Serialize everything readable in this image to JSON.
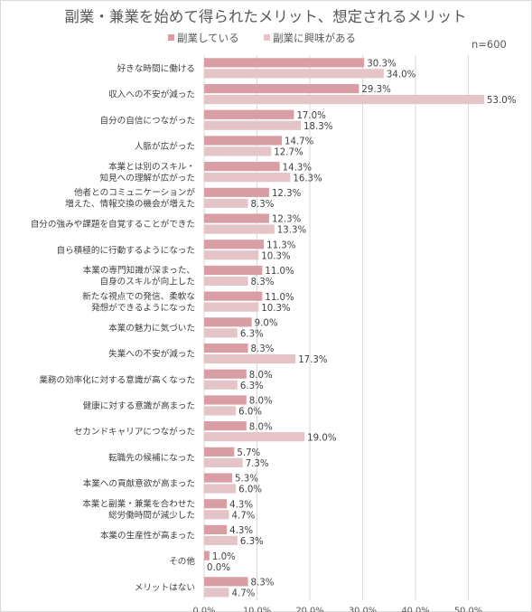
{
  "chart_data": {
    "type": "bar",
    "orientation": "horizontal",
    "title": "副業・兼業を始めて得られたメリット、想定されるメリット",
    "note": "n=600",
    "legend_position": "top",
    "grid": true,
    "xlim": [
      0,
      55
    ],
    "x_ticks": [
      "0.0%",
      "10.0%",
      "20.0%",
      "30.0%",
      "40.0%",
      "50.0%"
    ],
    "x_tick_values": [
      0,
      10,
      20,
      30,
      40,
      50
    ],
    "categories": [
      "好きな時間に働ける",
      "収入への不安が減った",
      "自分の自信につながった",
      "人脈が広がった",
      "本業とは別のスキル・\n知見への理解が広がった",
      "他者とのコミュニケーションが\n増えた、情報交換の機会が増えた",
      "自分の強みや課題を自覚することができた",
      "自ら積極的に行動するようになった",
      "本業の専門知識が深まった、\n自身のスキルが向上した",
      "新たな視点での発信、柔軟な\n発想ができるようになった",
      "本業の魅力に気づいた",
      "失業への不安が減った",
      "業務の効率化に対する意識が高くなった",
      "健康に対する意識が高まった",
      "セカンドキャリアにつながった",
      "転職先の候補になった",
      "本業への貢献意欲が高まった",
      "本業と副業・兼業を合わせた\n総労働時間が減少した",
      "本業の生産性が高まった",
      "その他",
      "メリットはない"
    ],
    "series": [
      {
        "name": "副業している",
        "color": "#d99da4",
        "values": [
          30.3,
          29.3,
          17.0,
          14.7,
          14.3,
          12.3,
          12.3,
          11.3,
          11.0,
          11.0,
          9.0,
          8.3,
          8.0,
          8.0,
          8.0,
          5.7,
          5.3,
          4.3,
          4.3,
          1.0,
          8.3
        ],
        "labels": [
          "30.3%",
          "29.3%",
          "17.0%",
          "14.7%",
          "14.3%",
          "12.3%",
          "12.3%",
          "11.3%",
          "11.0%",
          "11.0%",
          "9.0%",
          "8.3%",
          "8.0%",
          "8.0%",
          "8.0%",
          "5.7%",
          "5.3%",
          "4.3%",
          "4.3%",
          "1.0%",
          "8.3%"
        ]
      },
      {
        "name": "副業に興味がある",
        "color": "#e5c4c8",
        "values": [
          34.0,
          53.0,
          18.3,
          12.7,
          16.3,
          8.3,
          13.3,
          10.3,
          8.3,
          10.3,
          6.3,
          17.3,
          6.3,
          6.0,
          19.0,
          7.3,
          6.0,
          4.7,
          6.3,
          0.0,
          4.7
        ],
        "labels": [
          "34.0%",
          "53.0%",
          "18.3%",
          "12.7%",
          "16.3%",
          "8.3%",
          "13.3%",
          "10.3%",
          "8.3%",
          "10.3%",
          "6.3%",
          "17.3%",
          "6.3%",
          "6.0%",
          "19.0%",
          "7.3%",
          "6.0%",
          "4.7%",
          "6.3%",
          "0.0%",
          "4.7%"
        ]
      }
    ]
  }
}
